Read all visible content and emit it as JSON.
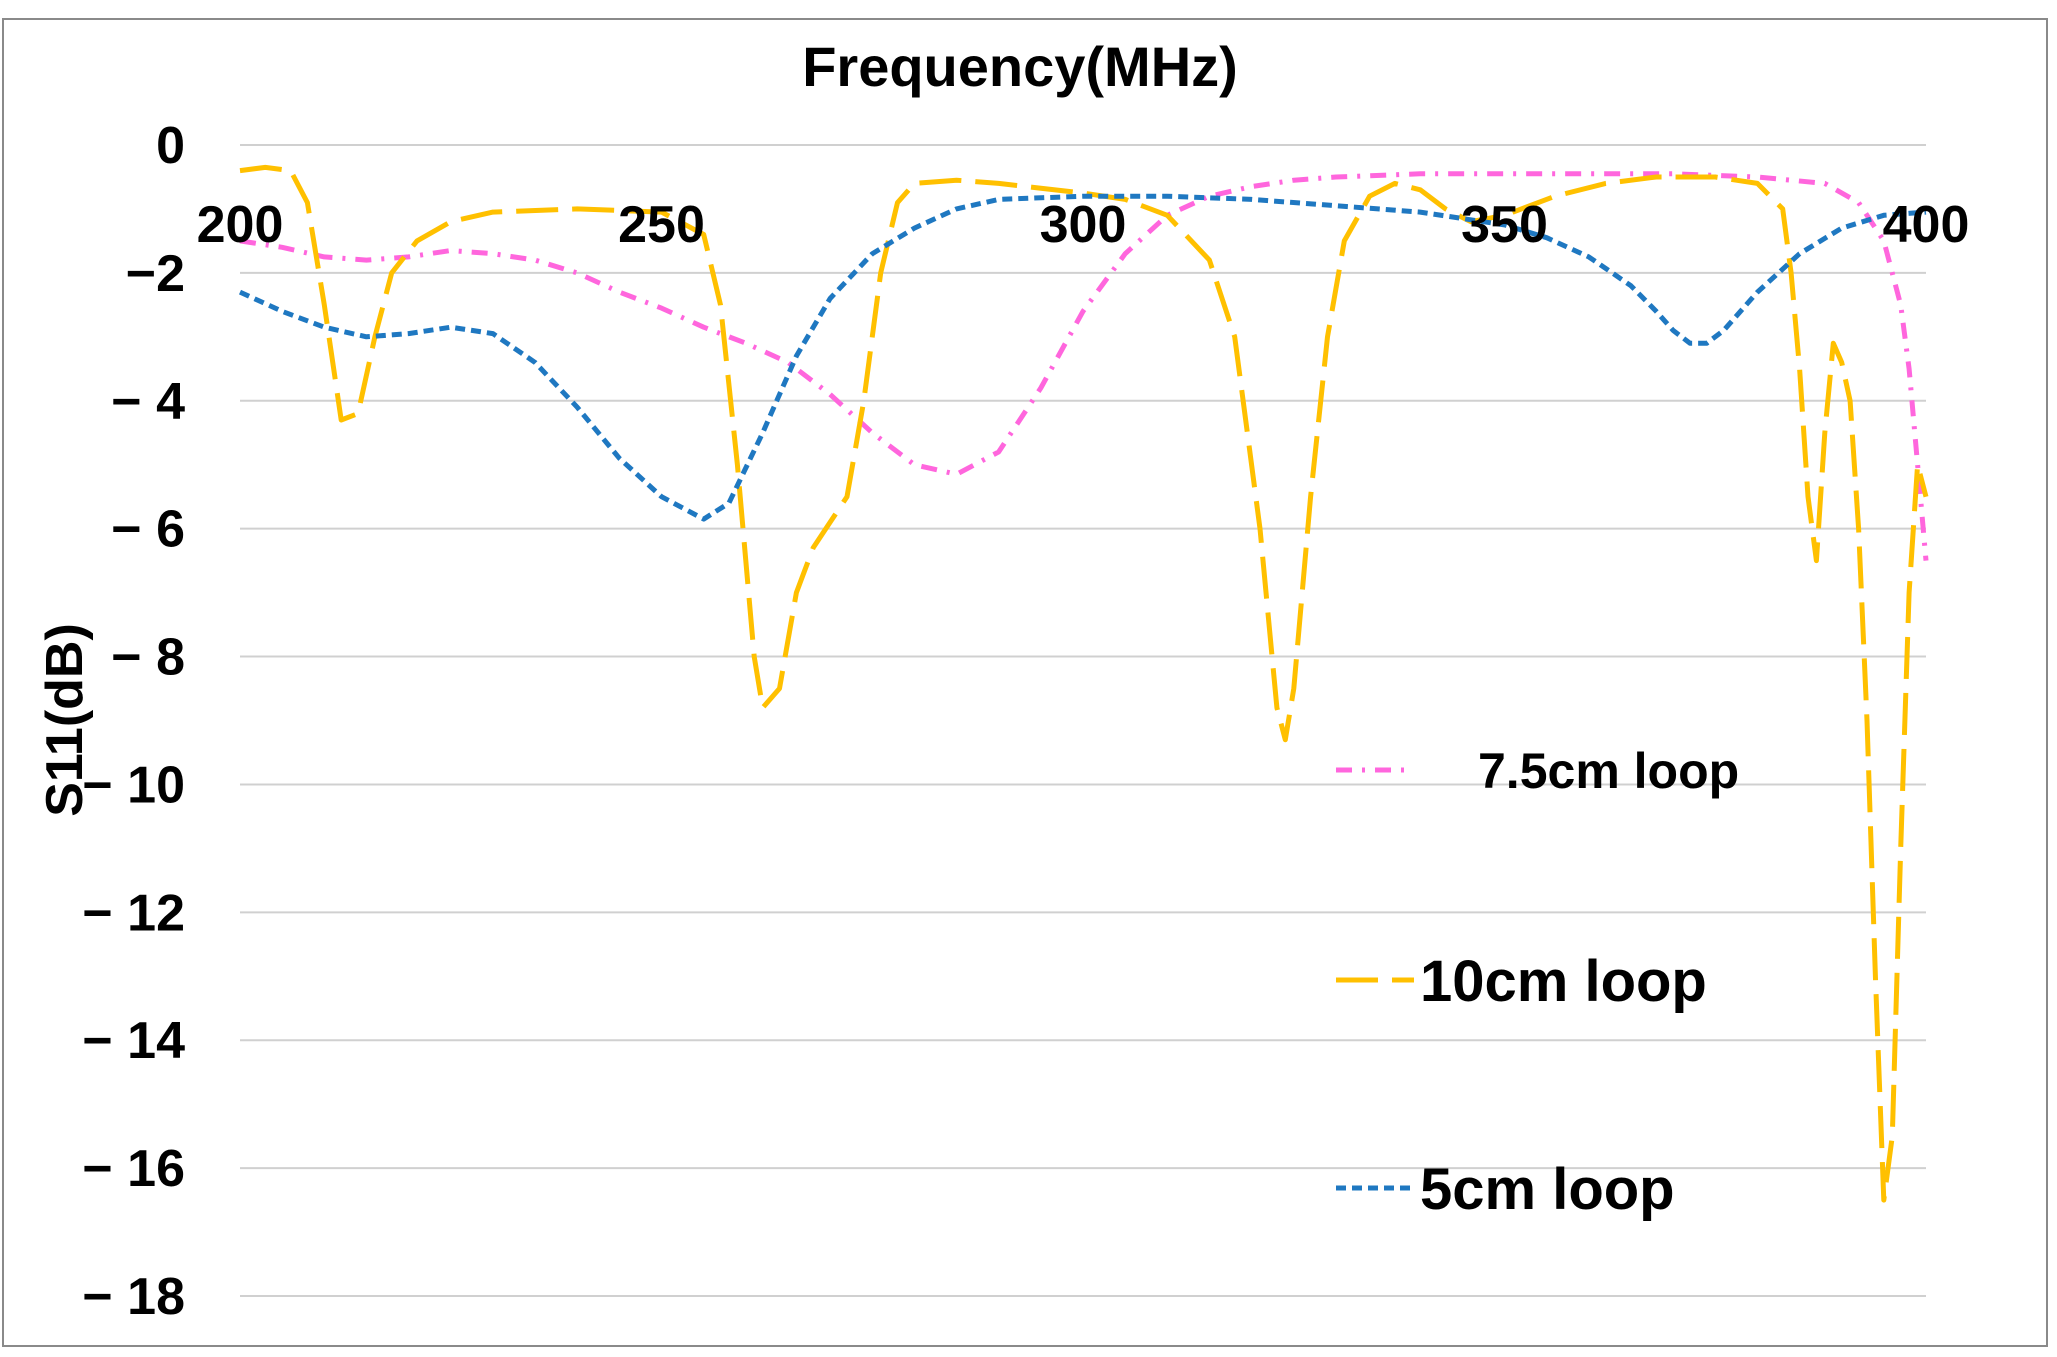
{
  "chart_data": {
    "type": "line",
    "xlabel": "Frequency(MHz)",
    "ylabel": "S11(dB)",
    "xlim": [
      200,
      400
    ],
    "ylim": [
      -18,
      0
    ],
    "x_ticks": [
      200,
      250,
      300,
      350,
      400
    ],
    "x_tick_labels": [
      "200",
      "250",
      "300",
      "350",
      "400"
    ],
    "y_ticks": [
      0,
      -2,
      -4,
      -6,
      -8,
      -10,
      -12,
      -14,
      -16,
      -18
    ],
    "y_tick_labels": [
      "0",
      "−2",
      "− 4",
      "− 6",
      "− 8",
      "− 10",
      "− 12",
      "− 14",
      "− 16",
      "− 18"
    ],
    "grid": true,
    "x_axis_position": "top",
    "legend_position": "right",
    "series": [
      {
        "name": "7.5cm loop",
        "color": "#ff66dd",
        "dash": "dashdot",
        "points": [
          [
            200,
            -1.5
          ],
          [
            205,
            -1.6
          ],
          [
            210,
            -1.75
          ],
          [
            215,
            -1.8
          ],
          [
            220,
            -1.75
          ],
          [
            225,
            -1.65
          ],
          [
            230,
            -1.7
          ],
          [
            235,
            -1.8
          ],
          [
            240,
            -2.0
          ],
          [
            245,
            -2.3
          ],
          [
            250,
            -2.55
          ],
          [
            255,
            -2.85
          ],
          [
            260,
            -3.1
          ],
          [
            265,
            -3.4
          ],
          [
            270,
            -3.9
          ],
          [
            275,
            -4.5
          ],
          [
            280,
            -5.0
          ],
          [
            285,
            -5.15
          ],
          [
            290,
            -4.8
          ],
          [
            295,
            -3.8
          ],
          [
            300,
            -2.6
          ],
          [
            305,
            -1.7
          ],
          [
            310,
            -1.1
          ],
          [
            315,
            -0.8
          ],
          [
            320,
            -0.65
          ],
          [
            325,
            -0.55
          ],
          [
            330,
            -0.5
          ],
          [
            340,
            -0.45
          ],
          [
            350,
            -0.45
          ],
          [
            360,
            -0.45
          ],
          [
            370,
            -0.45
          ],
          [
            380,
            -0.5
          ],
          [
            388,
            -0.6
          ],
          [
            392,
            -0.9
          ],
          [
            395,
            -1.5
          ],
          [
            397,
            -2.5
          ],
          [
            398,
            -3.5
          ],
          [
            399,
            -5.0
          ],
          [
            400,
            -6.5
          ]
        ]
      },
      {
        "name": "10cm loop",
        "color": "#ffc000",
        "dash": "longdash",
        "points": [
          [
            200,
            -0.4
          ],
          [
            203,
            -0.35
          ],
          [
            206,
            -0.4
          ],
          [
            208,
            -0.9
          ],
          [
            210,
            -2.5
          ],
          [
            212,
            -4.3
          ],
          [
            214,
            -4.2
          ],
          [
            216,
            -3.0
          ],
          [
            218,
            -2.0
          ],
          [
            221,
            -1.5
          ],
          [
            225,
            -1.2
          ],
          [
            230,
            -1.05
          ],
          [
            240,
            -1.0
          ],
          [
            250,
            -1.05
          ],
          [
            255,
            -1.4
          ],
          [
            257,
            -2.5
          ],
          [
            259,
            -5.0
          ],
          [
            261,
            -8.0
          ],
          [
            262,
            -8.8
          ],
          [
            264,
            -8.5
          ],
          [
            266,
            -7.0
          ],
          [
            268,
            -6.3
          ],
          [
            270,
            -5.9
          ],
          [
            272,
            -5.5
          ],
          [
            274,
            -4.0
          ],
          [
            276,
            -2.0
          ],
          [
            278,
            -0.9
          ],
          [
            280,
            -0.6
          ],
          [
            285,
            -0.55
          ],
          [
            290,
            -0.6
          ],
          [
            300,
            -0.75
          ],
          [
            305,
            -0.85
          ],
          [
            310,
            -1.1
          ],
          [
            315,
            -1.8
          ],
          [
            318,
            -3.0
          ],
          [
            321,
            -6.0
          ],
          [
            323,
            -8.8
          ],
          [
            324,
            -9.3
          ],
          [
            325,
            -8.5
          ],
          [
            327,
            -5.5
          ],
          [
            329,
            -3.0
          ],
          [
            331,
            -1.5
          ],
          [
            334,
            -0.8
          ],
          [
            337,
            -0.6
          ],
          [
            340,
            -0.7
          ],
          [
            343,
            -1.0
          ],
          [
            346,
            -1.2
          ],
          [
            350,
            -1.1
          ],
          [
            356,
            -0.8
          ],
          [
            362,
            -0.6
          ],
          [
            368,
            -0.5
          ],
          [
            375,
            -0.5
          ],
          [
            380,
            -0.6
          ],
          [
            383,
            -1.0
          ],
          [
            384,
            -2.0
          ],
          [
            385,
            -3.5
          ],
          [
            386,
            -5.5
          ],
          [
            387,
            -6.5
          ],
          [
            388,
            -4.5
          ],
          [
            389,
            -3.1
          ],
          [
            390,
            -3.4
          ],
          [
            391,
            -4.0
          ],
          [
            392,
            -6.0
          ],
          [
            393,
            -9.0
          ],
          [
            394,
            -13.0
          ],
          [
            395,
            -16.5
          ],
          [
            396,
            -15.5
          ],
          [
            397,
            -11.0
          ],
          [
            398,
            -7.0
          ],
          [
            399,
            -5.0
          ],
          [
            400,
            -5.5
          ]
        ]
      },
      {
        "name": "5cm loop",
        "color": "#1f78c1",
        "dash": "shortdash",
        "points": [
          [
            200,
            -2.3
          ],
          [
            205,
            -2.6
          ],
          [
            210,
            -2.85
          ],
          [
            215,
            -3.0
          ],
          [
            220,
            -2.95
          ],
          [
            225,
            -2.85
          ],
          [
            230,
            -2.95
          ],
          [
            235,
            -3.4
          ],
          [
            240,
            -4.1
          ],
          [
            245,
            -4.9
          ],
          [
            250,
            -5.5
          ],
          [
            255,
            -5.85
          ],
          [
            258,
            -5.6
          ],
          [
            262,
            -4.5
          ],
          [
            266,
            -3.3
          ],
          [
            270,
            -2.4
          ],
          [
            275,
            -1.7
          ],
          [
            280,
            -1.3
          ],
          [
            285,
            -1.0
          ],
          [
            290,
            -0.85
          ],
          [
            300,
            -0.8
          ],
          [
            310,
            -0.8
          ],
          [
            320,
            -0.85
          ],
          [
            330,
            -0.95
          ],
          [
            340,
            -1.05
          ],
          [
            350,
            -1.25
          ],
          [
            355,
            -1.45
          ],
          [
            360,
            -1.75
          ],
          [
            365,
            -2.2
          ],
          [
            368,
            -2.6
          ],
          [
            370,
            -2.9
          ],
          [
            372,
            -3.1
          ],
          [
            374,
            -3.1
          ],
          [
            376,
            -2.9
          ],
          [
            380,
            -2.3
          ],
          [
            385,
            -1.7
          ],
          [
            390,
            -1.3
          ],
          [
            395,
            -1.1
          ],
          [
            400,
            -1.05
          ]
        ]
      }
    ]
  }
}
